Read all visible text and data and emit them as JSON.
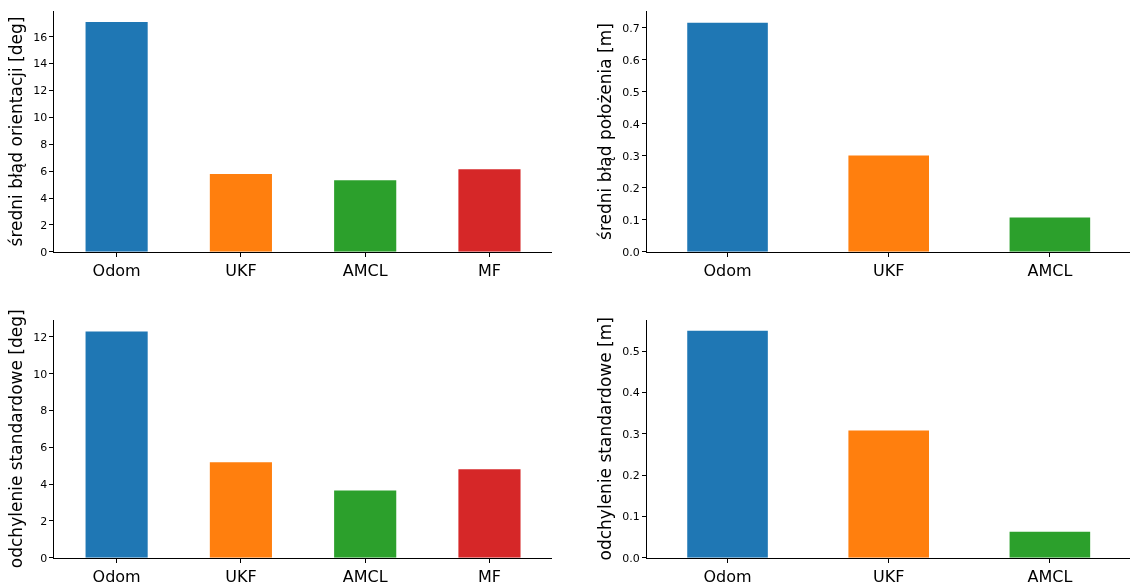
{
  "chart_data": [
    {
      "type": "bar",
      "categories": [
        "Odom",
        "UKF",
        "AMCL",
        "MF"
      ],
      "values": [
        17.1,
        5.78,
        5.33,
        6.15
      ],
      "colors": [
        "#1f77b4",
        "#ff7f0e",
        "#2ca02c",
        "#d62728"
      ],
      "ylabel": "średni błąd orientacji [deg]",
      "ylim": [
        0,
        17.9
      ],
      "yticks": [
        0,
        2,
        4,
        6,
        8,
        10,
        12,
        14,
        16
      ]
    },
    {
      "type": "bar",
      "categories": [
        "Odom",
        "UKF",
        "AMCL"
      ],
      "values": [
        0.716,
        0.301,
        0.107
      ],
      "colors": [
        "#1f77b4",
        "#ff7f0e",
        "#2ca02c"
      ],
      "ylabel": "średni błąd położenia [m]",
      "ylim": [
        0,
        0.752
      ],
      "yticks": [
        {
          "value": 0,
          "label": "0.0"
        },
        0.1,
        0.2,
        0.3,
        0.4,
        0.5,
        0.6,
        0.7
      ]
    },
    {
      "type": "bar",
      "categories": [
        "Odom",
        "UKF",
        "AMCL",
        "MF"
      ],
      "values": [
        12.29,
        5.19,
        3.65,
        4.81
      ],
      "colors": [
        "#1f77b4",
        "#ff7f0e",
        "#2ca02c",
        "#d62728"
      ],
      "ylabel": "odchylenie standardowe [deg]",
      "ylim": [
        0,
        12.92
      ],
      "yticks": [
        0,
        2,
        4,
        6,
        8,
        10,
        12
      ]
    },
    {
      "type": "bar",
      "categories": [
        "Odom",
        "UKF",
        "AMCL"
      ],
      "values": [
        0.55,
        0.308,
        0.063
      ],
      "colors": [
        "#1f77b4",
        "#ff7f0e",
        "#2ca02c"
      ],
      "ylabel": "odchylenie standardowe [m]",
      "ylim": [
        0,
        0.576
      ],
      "yticks": [
        {
          "value": 0,
          "label": "0.0"
        },
        0.1,
        0.2,
        0.3,
        0.4,
        0.5
      ]
    }
  ]
}
